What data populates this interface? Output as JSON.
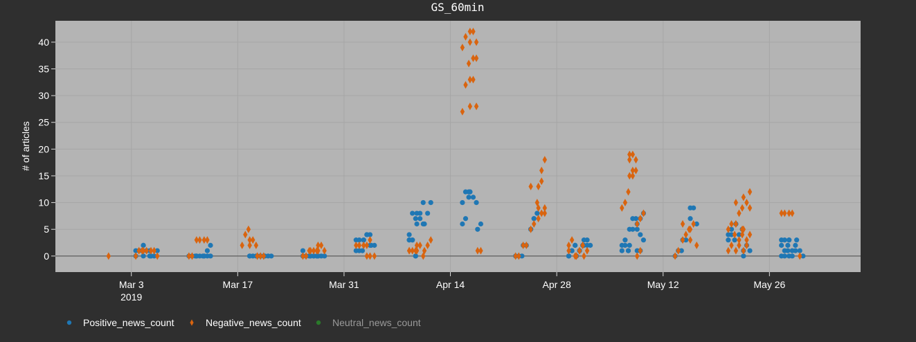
{
  "chart_data": {
    "type": "scatter",
    "title": "GS_60min",
    "xlabel": "",
    "ylabel": "# of articles",
    "xlim": [
      "2019-02-21",
      "2019-06-07"
    ],
    "ylim": [
      -3,
      44
    ],
    "yticks": [
      0,
      5,
      10,
      15,
      20,
      25,
      30,
      35,
      40
    ],
    "xticks": [
      {
        "date": "2019-03-03",
        "label": "Mar 3",
        "sublabel": "2019"
      },
      {
        "date": "2019-03-17",
        "label": "Mar 17",
        "sublabel": ""
      },
      {
        "date": "2019-03-31",
        "label": "Mar 31",
        "sublabel": ""
      },
      {
        "date": "2019-04-14",
        "label": "Apr 14",
        "sublabel": ""
      },
      {
        "date": "2019-04-28",
        "label": "Apr 28",
        "sublabel": ""
      },
      {
        "date": "2019-05-12",
        "label": "May 12",
        "sublabel": ""
      },
      {
        "date": "2019-05-26",
        "label": "May 26",
        "sublabel": ""
      }
    ],
    "grid": true,
    "legend_position": "bottom-left",
    "colors": {
      "page_background": "#2f2f2f",
      "plot_background": "#b4b4b4",
      "grid": "#a6a6a6",
      "zero_line": "#555555",
      "positive": "#1f77b4",
      "negative": "#d9640f",
      "neutral": "#2a7a2a"
    },
    "series": [
      {
        "name": "Positive_news_count",
        "marker": "circle",
        "points": [
          {
            "x": "2019-03-04",
            "y": [
              1,
              1,
              1,
              0
            ]
          },
          {
            "x": "2019-03-05",
            "y": [
              2,
              1,
              1,
              2,
              1,
              0,
              0
            ]
          },
          {
            "x": "2019-03-06",
            "y": [
              0,
              0,
              1,
              0
            ]
          },
          {
            "x": "2019-03-11",
            "y": [
              0,
              0,
              0
            ]
          },
          {
            "x": "2019-03-12",
            "y": [
              0,
              0,
              0,
              0
            ]
          },
          {
            "x": "2019-03-13",
            "y": [
              0,
              0,
              0,
              0,
              1,
              2
            ]
          },
          {
            "x": "2019-03-19",
            "y": [
              0,
              0,
              0,
              0
            ]
          },
          {
            "x": "2019-03-20",
            "y": [
              0,
              0,
              0,
              0,
              0,
              0
            ]
          },
          {
            "x": "2019-03-21",
            "y": [
              0,
              0,
              0
            ]
          },
          {
            "x": "2019-03-26",
            "y": [
              1,
              0,
              0,
              0
            ]
          },
          {
            "x": "2019-03-27",
            "y": [
              0,
              0,
              0,
              0,
              0,
              0
            ]
          },
          {
            "x": "2019-03-28",
            "y": [
              0,
              0,
              0,
              0
            ]
          },
          {
            "x": "2019-04-02",
            "y": [
              1,
              1,
              1,
              3,
              3
            ]
          },
          {
            "x": "2019-04-03",
            "y": [
              3,
              4,
              4,
              3,
              4,
              2
            ]
          },
          {
            "x": "2019-04-04",
            "y": [
              2,
              2
            ]
          },
          {
            "x": "2019-04-09",
            "y": [
              3,
              3,
              0,
              3,
              3,
              0,
              4,
              8,
              7
            ]
          },
          {
            "x": "2019-04-10",
            "y": [
              8,
              7,
              6,
              6,
              8,
              10
            ]
          },
          {
            "x": "2019-04-11",
            "y": [
              6,
              8,
              10
            ]
          },
          {
            "x": "2019-04-16",
            "y": [
              6,
              7,
              11,
              10,
              12,
              12
            ]
          },
          {
            "x": "2019-04-17",
            "y": [
              12,
              11,
              10,
              12
            ]
          },
          {
            "x": "2019-04-18",
            "y": [
              5,
              6
            ]
          },
          {
            "x": "2019-04-23",
            "y": [
              0,
              0,
              0
            ]
          },
          {
            "x": "2019-04-24",
            "y": [
              2,
              2
            ]
          },
          {
            "x": "2019-04-25",
            "y": [
              5,
              7,
              8,
              5,
              7,
              8
            ]
          },
          {
            "x": "2019-04-30",
            "y": [
              0,
              1,
              2,
              0,
              1,
              2
            ]
          },
          {
            "x": "2019-05-01",
            "y": [
              0,
              1,
              2,
              0,
              1,
              2
            ]
          },
          {
            "x": "2019-05-02",
            "y": [
              2,
              3,
              2,
              3,
              2
            ]
          },
          {
            "x": "2019-05-07",
            "y": [
              1,
              2,
              1,
              2,
              3,
              1
            ]
          },
          {
            "x": "2019-05-08",
            "y": [
              2,
              5,
              7,
              5,
              7
            ]
          },
          {
            "x": "2019-05-09",
            "y": [
              1,
              4,
              8,
              6,
              1,
              3,
              5,
              7
            ]
          },
          {
            "x": "2019-05-14",
            "y": [
              0,
              1,
              1
            ]
          },
          {
            "x": "2019-05-15",
            "y": [
              3,
              3
            ]
          },
          {
            "x": "2019-05-16",
            "y": [
              7,
              9,
              6,
              9
            ]
          },
          {
            "x": "2019-05-21",
            "y": [
              3,
              4,
              3,
              4,
              5
            ]
          },
          {
            "x": "2019-05-22",
            "y": [
              6,
              4,
              5,
              6
            ]
          },
          {
            "x": "2019-05-23",
            "y": [
              1,
              2,
              1,
              0
            ]
          },
          {
            "x": "2019-05-28",
            "y": [
              0,
              1,
              2,
              3,
              0,
              1,
              2,
              3
            ]
          },
          {
            "x": "2019-05-29",
            "y": [
              0,
              1,
              2,
              3,
              0,
              1,
              3
            ]
          },
          {
            "x": "2019-05-30",
            "y": [
              3,
              1,
              0
            ]
          }
        ]
      },
      {
        "name": "Negative_news_count",
        "marker": "diamond",
        "points": [
          {
            "x": "2019-02-28",
            "y": [
              0
            ]
          },
          {
            "x": "2019-03-04",
            "y": [
              0,
              1,
              1
            ]
          },
          {
            "x": "2019-03-05",
            "y": [
              1,
              1
            ]
          },
          {
            "x": "2019-03-06",
            "y": [
              1,
              1,
              0
            ]
          },
          {
            "x": "2019-03-11",
            "y": [
              0,
              0
            ]
          },
          {
            "x": "2019-03-12",
            "y": [
              3,
              3
            ]
          },
          {
            "x": "2019-03-13",
            "y": [
              3,
              3
            ]
          },
          {
            "x": "2019-03-18",
            "y": [
              2,
              4,
              5
            ]
          },
          {
            "x": "2019-03-19",
            "y": [
              2,
              3,
              2,
              3
            ]
          },
          {
            "x": "2019-03-20",
            "y": [
              0,
              0,
              0,
              0
            ]
          },
          {
            "x": "2019-03-26",
            "y": [
              0,
              0,
              1
            ]
          },
          {
            "x": "2019-03-27",
            "y": [
              1,
              1,
              1
            ]
          },
          {
            "x": "2019-03-28",
            "y": [
              2,
              2,
              1,
              1
            ]
          },
          {
            "x": "2019-04-02",
            "y": [
              2,
              2
            ]
          },
          {
            "x": "2019-04-03",
            "y": [
              2,
              2,
              3,
              2,
              0,
              0
            ]
          },
          {
            "x": "2019-04-04",
            "y": [
              0
            ]
          },
          {
            "x": "2019-04-09",
            "y": [
              1,
              1,
              1,
              1
            ]
          },
          {
            "x": "2019-04-10",
            "y": [
              2,
              2,
              0,
              1
            ]
          },
          {
            "x": "2019-04-11",
            "y": [
              1,
              2,
              3
            ]
          },
          {
            "x": "2019-04-16",
            "y": [
              27,
              32,
              36,
              39,
              41
            ]
          },
          {
            "x": "2019-04-17",
            "y": [
              28,
              33,
              37,
              40,
              42,
              28,
              33,
              37,
              40,
              42
            ]
          },
          {
            "x": "2019-04-18",
            "y": [
              1,
              1
            ]
          },
          {
            "x": "2019-04-23",
            "y": [
              0,
              0
            ]
          },
          {
            "x": "2019-04-24",
            "y": [
              2,
              2
            ]
          },
          {
            "x": "2019-04-25",
            "y": [
              5,
              6,
              10,
              13
            ]
          },
          {
            "x": "2019-04-26",
            "y": [
              7,
              8,
              9,
              13,
              16,
              8,
              9,
              14,
              18
            ]
          },
          {
            "x": "2019-04-30",
            "y": [
              2,
              3,
              0,
              1
            ]
          },
          {
            "x": "2019-05-01",
            "y": [
              0,
              1,
              2,
              0,
              1,
              2
            ]
          },
          {
            "x": "2019-05-02",
            "y": [
              0,
              1
            ]
          },
          {
            "x": "2019-05-07",
            "y": [
              9,
              10,
              12
            ]
          },
          {
            "x": "2019-05-08",
            "y": [
              15,
              16,
              18,
              19,
              15,
              16,
              18,
              19
            ]
          },
          {
            "x": "2019-05-09",
            "y": [
              6,
              7,
              8,
              0,
              1
            ]
          },
          {
            "x": "2019-05-14",
            "y": [
              0,
              1
            ]
          },
          {
            "x": "2019-05-15",
            "y": [
              3,
              4,
              5,
              6
            ]
          },
          {
            "x": "2019-05-16",
            "y": [
              5,
              6,
              2,
              3
            ]
          },
          {
            "x": "2019-05-21",
            "y": [
              1,
              2,
              4,
              5,
              6
            ]
          },
          {
            "x": "2019-05-22",
            "y": [
              1,
              2,
              5,
              6,
              3,
              4,
              6,
              8,
              9,
              10
            ]
          },
          {
            "x": "2019-05-23",
            "y": [
              1,
              2,
              9,
              11,
              3,
              4,
              5,
              10,
              12
            ]
          },
          {
            "x": "2019-05-28",
            "y": [
              8,
              8
            ]
          },
          {
            "x": "2019-05-29",
            "y": [
              8,
              8
            ]
          },
          {
            "x": "2019-05-30",
            "y": [
              0
            ]
          }
        ]
      },
      {
        "name": "Neutral_news_count",
        "marker": "circle",
        "legend_muted": true,
        "points": []
      }
    ]
  }
}
